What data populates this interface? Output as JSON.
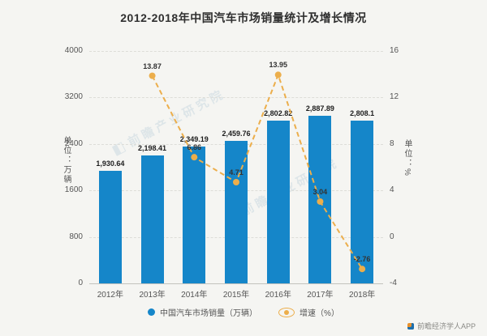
{
  "title": "2012-2018年中国汽车市场销量统计及增长情况",
  "chart_data": {
    "type": "bar+line",
    "categories": [
      "2012年",
      "2013年",
      "2014年",
      "2015年",
      "2016年",
      "2017年",
      "2018年"
    ],
    "series": [
      {
        "name": "中国汽车市场销量（万辆）",
        "type": "bar",
        "color": "#1586c9",
        "values": [
          1930.64,
          2198.41,
          2349.19,
          2459.76,
          2802.82,
          2887.89,
          2808.1
        ],
        "labels": [
          "1,930.64",
          "2,198.41",
          "2,349.19",
          "2,459.76",
          "2,802.82",
          "2,887.89",
          "2,808.1"
        ]
      },
      {
        "name": "增速（%）",
        "type": "line",
        "color": "#ecae4b",
        "values": [
          null,
          13.87,
          6.86,
          4.71,
          13.95,
          3.04,
          -2.76
        ],
        "labels": [
          "",
          "13.87",
          "6.86",
          "4.71",
          "13.95",
          "3.04",
          "-2.76"
        ]
      }
    ],
    "left_axis": {
      "min": 0,
      "max": 4000,
      "ticks": [
        0,
        800,
        1600,
        2400,
        3200,
        4000
      ],
      "label": "单位：万辆"
    },
    "right_axis": {
      "min": -4,
      "max": 16,
      "ticks": [
        -4,
        0,
        4,
        8,
        12,
        16
      ],
      "label": "单位：%"
    },
    "legend": [
      "中国汽车市场销量（万辆）",
      "增速（%）"
    ],
    "grid": true,
    "legend_position": "bottom"
  },
  "watermark": {
    "text": "前瞻产业研究院"
  },
  "source": {
    "text": "前瞻经济学人APP"
  }
}
